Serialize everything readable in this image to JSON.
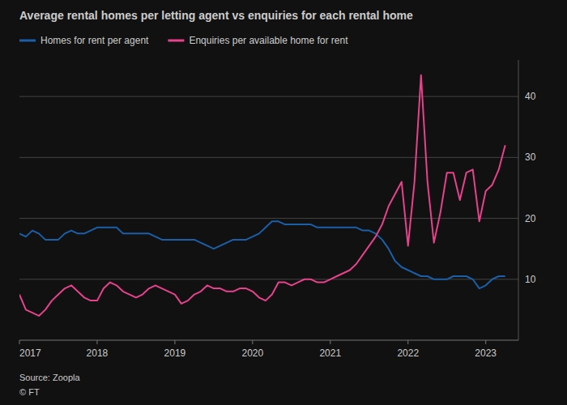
{
  "chart_data": {
    "type": "line",
    "title": "Average rental homes per letting agent vs enquiries for each rental home",
    "annotations": [
      "Source: Zoopla",
      "© FT"
    ],
    "x": [
      2017.0,
      2017.083,
      2017.167,
      2017.25,
      2017.333,
      2017.417,
      2017.5,
      2017.583,
      2017.667,
      2017.75,
      2017.833,
      2017.917,
      2018.0,
      2018.083,
      2018.167,
      2018.25,
      2018.333,
      2018.417,
      2018.5,
      2018.583,
      2018.667,
      2018.75,
      2018.833,
      2018.917,
      2019.0,
      2019.083,
      2019.167,
      2019.25,
      2019.333,
      2019.417,
      2019.5,
      2019.583,
      2019.667,
      2019.75,
      2019.833,
      2019.917,
      2020.0,
      2020.083,
      2020.167,
      2020.25,
      2020.333,
      2020.417,
      2020.5,
      2020.583,
      2020.667,
      2020.75,
      2020.833,
      2020.917,
      2021.0,
      2021.083,
      2021.167,
      2021.25,
      2021.333,
      2021.417,
      2021.5,
      2021.583,
      2021.667,
      2021.75,
      2021.833,
      2021.917,
      2022.0,
      2022.083,
      2022.167,
      2022.25,
      2022.333,
      2022.417,
      2022.5,
      2022.583,
      2022.667,
      2022.75,
      2022.833,
      2022.917,
      2023.0,
      2023.083,
      2023.167,
      2023.25
    ],
    "series": [
      {
        "name": "Homes for rent per agent",
        "color": "#1a5fa8",
        "values": [
          17.5,
          17.0,
          18.0,
          17.5,
          16.5,
          16.5,
          16.5,
          17.5,
          18.0,
          17.5,
          17.5,
          18.0,
          18.5,
          18.5,
          18.5,
          18.5,
          17.5,
          17.5,
          17.5,
          17.5,
          17.5,
          17.0,
          16.5,
          16.5,
          16.5,
          16.5,
          16.5,
          16.5,
          16.0,
          15.5,
          15.0,
          15.5,
          16.0,
          16.5,
          16.5,
          16.5,
          17.0,
          17.5,
          18.5,
          19.5,
          19.5,
          19.0,
          19.0,
          19.0,
          19.0,
          19.0,
          18.5,
          18.5,
          18.5,
          18.5,
          18.5,
          18.5,
          18.5,
          18.0,
          18.0,
          17.5,
          16.5,
          15.0,
          13.0,
          12.0,
          11.5,
          11.0,
          10.5,
          10.5,
          10.0,
          10.0,
          10.0,
          10.5,
          10.5,
          10.5,
          10.0,
          8.5,
          9.0,
          10.0,
          10.5,
          10.5
        ]
      },
      {
        "name": "Enquiries per available home for rent",
        "color": "#e8428c",
        "values": [
          7.5,
          5.0,
          4.5,
          4.0,
          5.0,
          6.5,
          7.5,
          8.5,
          9.0,
          8.0,
          7.0,
          6.5,
          6.5,
          8.5,
          9.5,
          9.0,
          8.0,
          7.5,
          7.0,
          7.5,
          8.5,
          9.0,
          8.5,
          8.0,
          7.5,
          6.0,
          6.5,
          7.5,
          8.0,
          9.0,
          8.5,
          8.5,
          8.0,
          8.0,
          8.5,
          8.5,
          8.0,
          7.0,
          6.5,
          7.5,
          9.5,
          9.5,
          9.0,
          9.5,
          10.0,
          10.0,
          9.5,
          9.5,
          10.0,
          10.5,
          11.0,
          11.5,
          12.5,
          14.0,
          15.5,
          17.0,
          19.0,
          22.0,
          24.0,
          26.0,
          15.5,
          26.0,
          43.5,
          26.0,
          16.0,
          21.0,
          27.5,
          27.5,
          23.0,
          27.5,
          28.0,
          19.5,
          24.5,
          25.5,
          28.0,
          32.0
        ]
      }
    ],
    "xlim": [
      2017.0,
      2023.42
    ],
    "xticks": [
      2017,
      2018,
      2019,
      2020,
      2021,
      2022,
      2023
    ],
    "ylim": [
      0,
      46
    ],
    "yticks": [
      10,
      20,
      30,
      40
    ],
    "grid": true,
    "legend": "top"
  }
}
